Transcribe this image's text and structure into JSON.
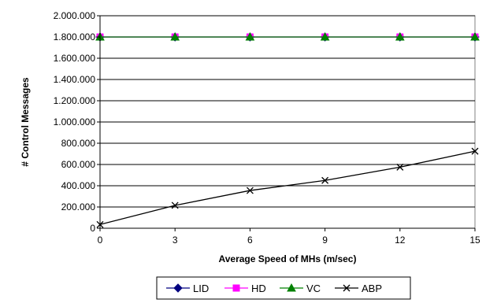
{
  "chart_data": {
    "type": "line",
    "xlabel": "Average Speed of MHs (m/sec)",
    "ylabel": "# Control Messages",
    "x": [
      0,
      3,
      6,
      9,
      12,
      15
    ],
    "x_tick_labels": [
      "0",
      "3",
      "6",
      "9",
      "12",
      "15"
    ],
    "ylim": [
      0,
      2000000
    ],
    "y_ticks": [
      0,
      200000,
      400000,
      600000,
      800000,
      1000000,
      1200000,
      1400000,
      1600000,
      1800000,
      2000000
    ],
    "y_tick_labels": [
      "0",
      "200.000",
      "400.000",
      "600.000",
      "800.000",
      "1.000.000",
      "1.200.000",
      "1.400.000",
      "1.600.000",
      "1.800.000",
      "2.000.000"
    ],
    "grid": "horizontal",
    "legend_position": "bottom",
    "series": [
      {
        "name": "LID",
        "values": [
          1800000,
          1800000,
          1800000,
          1800000,
          1800000,
          1800000
        ],
        "color": "#000080",
        "marker": "diamond"
      },
      {
        "name": "HD",
        "values": [
          1800000,
          1800000,
          1800000,
          1800000,
          1800000,
          1800000
        ],
        "color": "#FF00FF",
        "marker": "square"
      },
      {
        "name": "VC",
        "values": [
          1800000,
          1800000,
          1800000,
          1800000,
          1800000,
          1800000
        ],
        "color": "#008000",
        "marker": "triangle"
      },
      {
        "name": "ABP",
        "values": [
          35000,
          215000,
          355000,
          450000,
          575000,
          725000
        ],
        "color": "#000000",
        "marker": "x"
      }
    ]
  }
}
